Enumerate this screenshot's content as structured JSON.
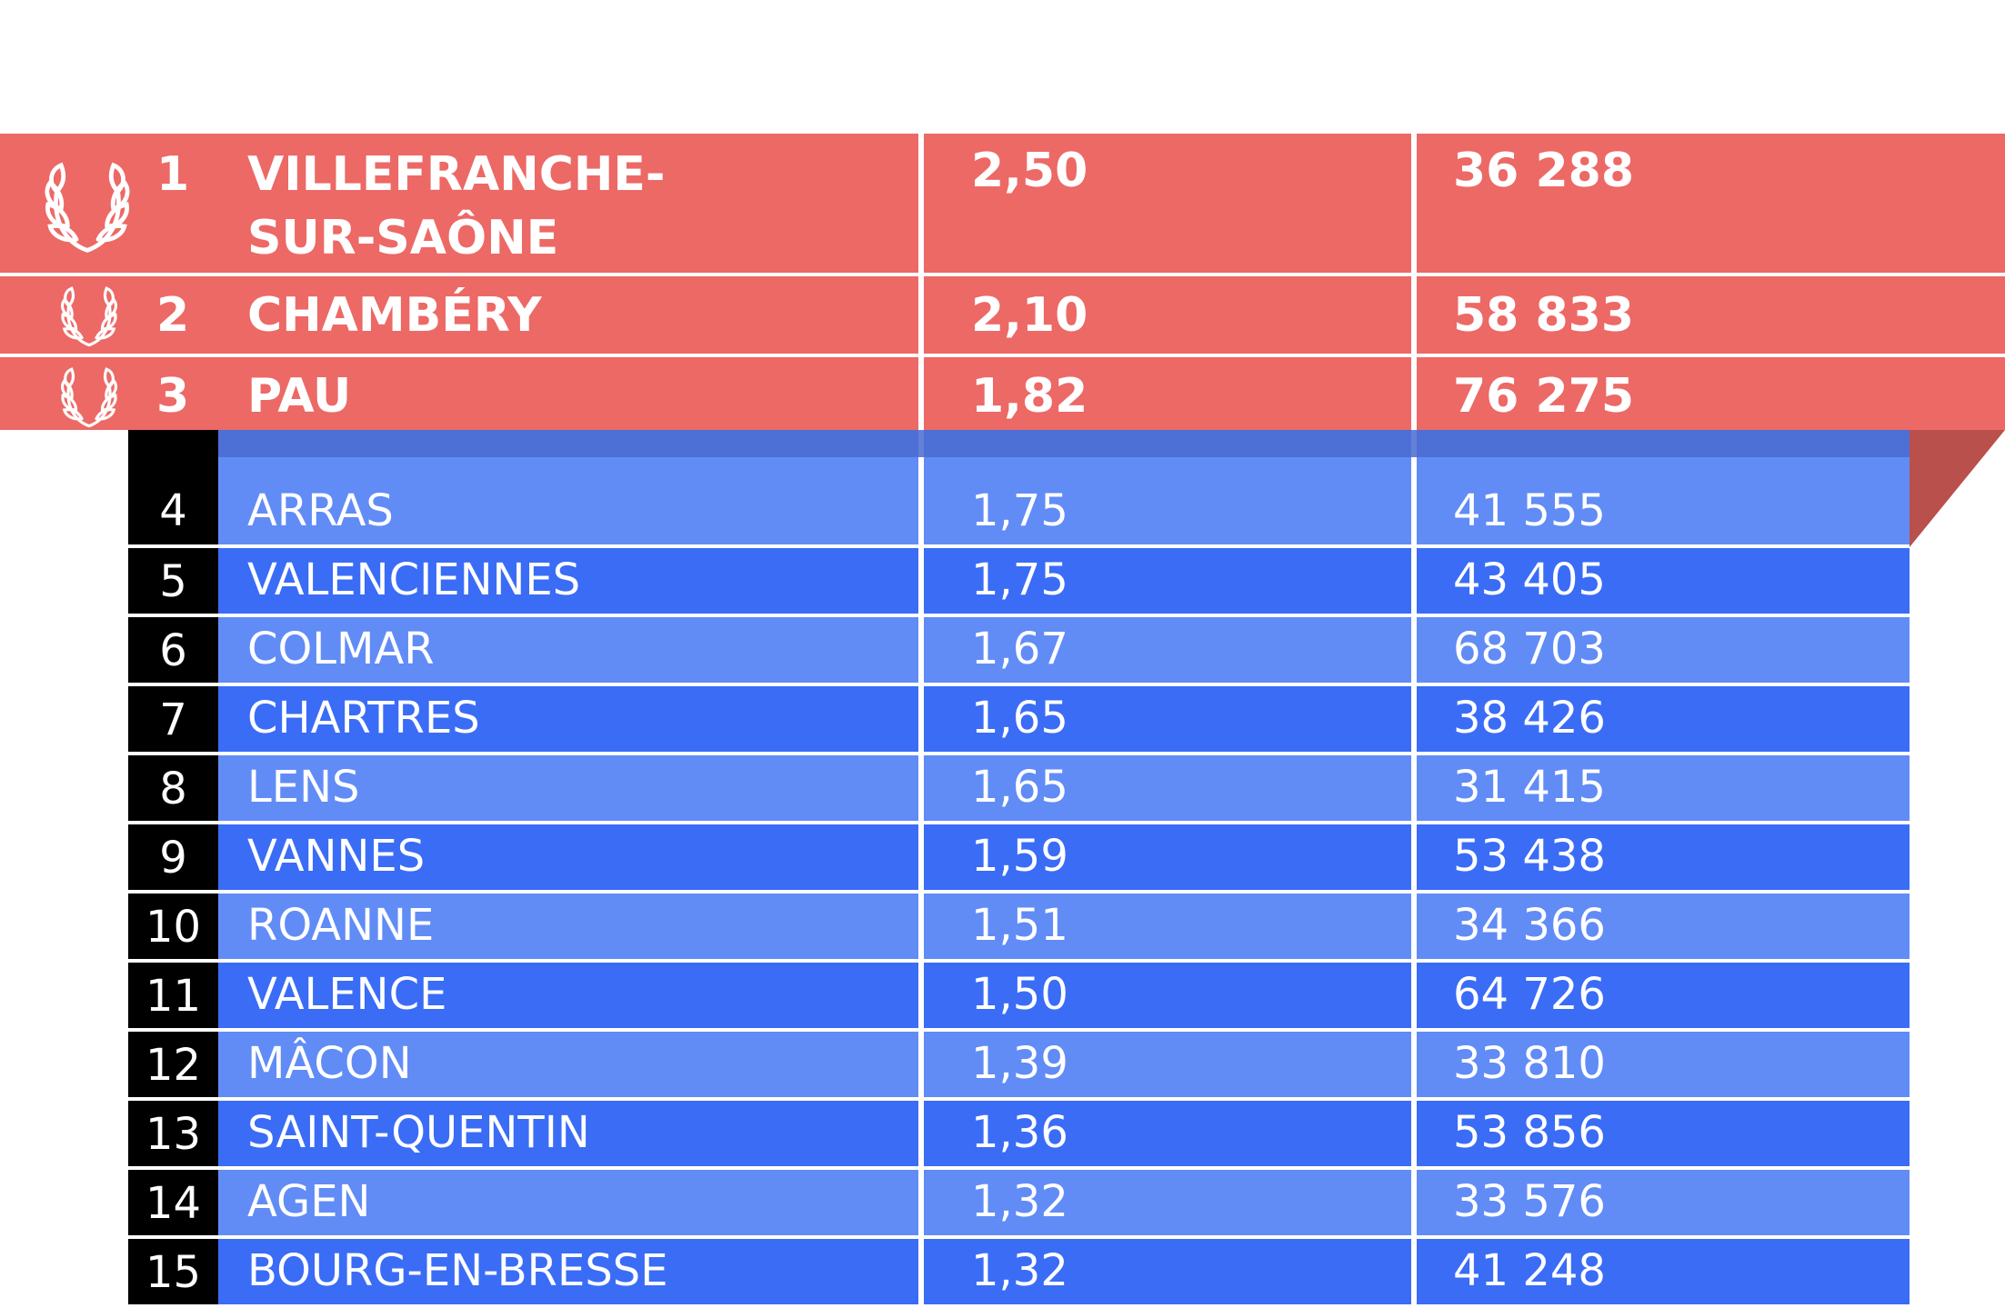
{
  "icons": {
    "top_rank": "laurel-wreath-icon"
  },
  "colors": {
    "podium_red": "#ec6966",
    "row_light_blue": "#618cf6",
    "row_dark_blue": "#3a6cf6",
    "rank_black": "#000000"
  },
  "podium": [
    {
      "rank": "1",
      "name_line1": "VILLEFRANCHE-",
      "name_line2": "SUR-SAÔNE",
      "value": "2,50",
      "population": "36 288"
    },
    {
      "rank": "2",
      "name_line1": "CHAMBÉRY",
      "value": "2,10",
      "population": "58 833"
    },
    {
      "rank": "3",
      "name_line1": "PAU",
      "value": "1,82",
      "population": "76 275"
    }
  ],
  "rows": [
    {
      "rank": "4",
      "name": "ARRAS",
      "value": "1,75",
      "population": "41 555"
    },
    {
      "rank": "5",
      "name": "VALENCIENNES",
      "value": "1,75",
      "population": "43 405"
    },
    {
      "rank": "6",
      "name": "COLMAR",
      "value": "1,67",
      "population": "68 703"
    },
    {
      "rank": "7",
      "name": "CHARTRES",
      "value": "1,65",
      "population": "38 426"
    },
    {
      "rank": "8",
      "name": "LENS",
      "value": "1,65",
      "population": "31 415"
    },
    {
      "rank": "9",
      "name": "VANNES",
      "value": "1,59",
      "population": "53 438"
    },
    {
      "rank": "10",
      "name": "ROANNE",
      "value": "1,51",
      "population": "34 366"
    },
    {
      "rank": "11",
      "name": "VALENCE",
      "value": "1,50",
      "population": "64 726"
    },
    {
      "rank": "12",
      "name": "MÂCON",
      "value": "1,39",
      "population": "33 810"
    },
    {
      "rank": "13",
      "name": "SAINT-QUENTIN",
      "value": "1,36",
      "population": "53 856"
    },
    {
      "rank": "14",
      "name": "AGEN",
      "value": "1,32",
      "population": "33 576"
    },
    {
      "rank": "15",
      "name": "BOURG-EN-BRESSE",
      "value": "1,32",
      "population": "41 248"
    }
  ]
}
